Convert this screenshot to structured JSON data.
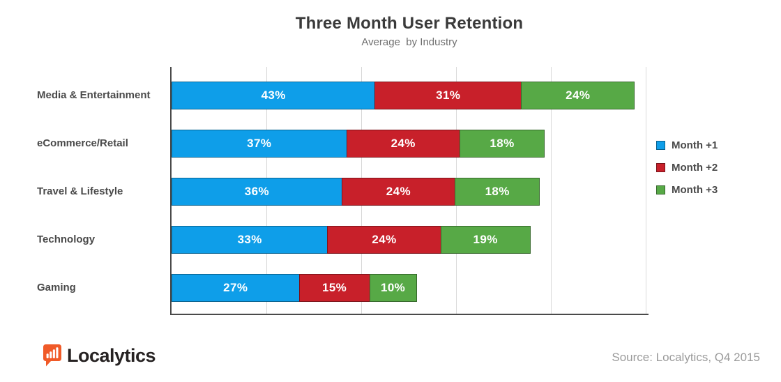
{
  "header": {
    "title": "Three Month User Retention",
    "subtitle": "Average  by Industry"
  },
  "chart_data": {
    "type": "bar",
    "orientation": "horizontal",
    "stacked": true,
    "title": "Three Month User Retention",
    "subtitle": "Average  by Industry",
    "categories": [
      "Media & Entertainment",
      "eCommerce/Retail",
      "Travel & Lifestyle",
      "Technology",
      "Gaming"
    ],
    "series": [
      {
        "name": "Month +1",
        "color": "#0E9EE9",
        "values": [
          43,
          37,
          36,
          33,
          27
        ],
        "labels": [
          "43%",
          "37%",
          "36%",
          "33%",
          "27%"
        ]
      },
      {
        "name": "Month +2",
        "color": "#C8202A",
        "values": [
          31,
          24,
          24,
          24,
          15
        ],
        "labels": [
          "31%",
          "24%",
          "24%",
          "24%",
          "15%"
        ]
      },
      {
        "name": "Month +3",
        "color": "#57A946",
        "values": [
          24,
          18,
          18,
          19,
          10
        ],
        "labels": [
          "24%",
          "18%",
          "18%",
          "19%",
          "10%"
        ]
      }
    ],
    "x_axis": {
      "min": 0,
      "max": 100,
      "gridline_pcts": [
        20,
        40,
        60,
        80,
        100
      ],
      "grid": true,
      "tick_labels_visible": false
    },
    "legend_position": "right",
    "value_labels": "inside-white-bold"
  },
  "footer": {
    "logo_text": "Localytics",
    "logo_color": "#F05A28",
    "source": "Source: Localytics, Q4 2015"
  }
}
